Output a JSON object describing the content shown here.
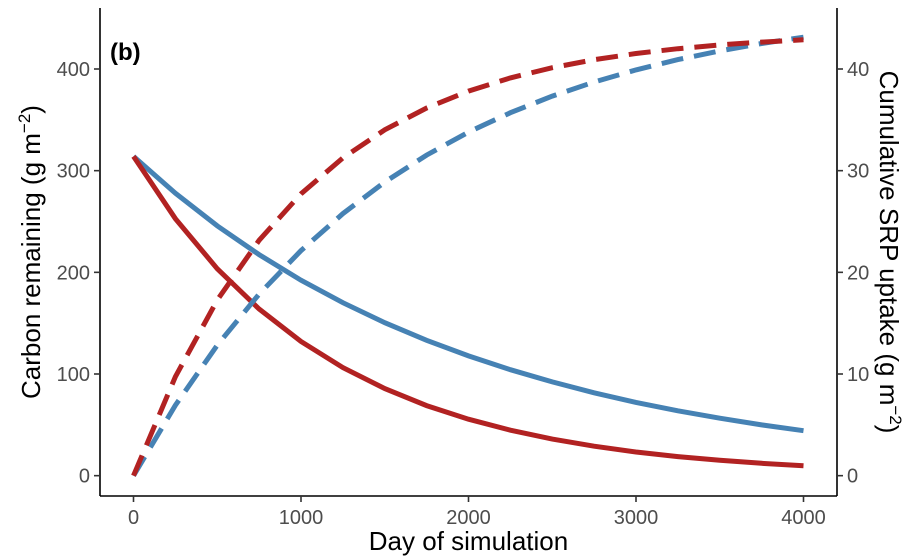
{
  "chart_data": {
    "type": "line",
    "panel_label": "(b)",
    "xlabel": "Day of simulation",
    "ylabel_left": "Carbon remaining (g m",
    "ylabel_left_sup": "−2",
    "ylabel_left_end": ")",
    "ylabel_right": "Cumulative SRP uptake (g m",
    "ylabel_right_sup": "−2",
    "ylabel_right_end": ")",
    "xlim": [
      -200,
      4200
    ],
    "ylim_left": [
      -20,
      460
    ],
    "ylim_right": [
      -2,
      46
    ],
    "xticks": [
      0,
      1000,
      2000,
      3000,
      4000
    ],
    "yticks_left": [
      0,
      100,
      200,
      300,
      400
    ],
    "yticks_right": [
      0,
      10,
      20,
      30,
      40
    ],
    "grid": false,
    "legend": "none",
    "colors": {
      "blue": "#4682b4",
      "red": "#b22222"
    },
    "series": [
      {
        "axis": "left",
        "style": "solid",
        "color": "#4682b4",
        "x": [
          0,
          250,
          500,
          750,
          1000,
          1250,
          1500,
          1750,
          2000,
          2250,
          2500,
          2750,
          3000,
          3250,
          3500,
          3750,
          4000
        ],
        "y": [
          314,
          277.8,
          245.7,
          217.4,
          192.3,
          170.1,
          150.5,
          133.1,
          117.8,
          104.2,
          92.2,
          81.5,
          72.1,
          63.8,
          56.5,
          49.9,
          44.2
        ]
      },
      {
        "axis": "left",
        "style": "solid",
        "color": "#b22222",
        "x": [
          0,
          250,
          500,
          750,
          1000,
          1250,
          1500,
          1750,
          2000,
          2250,
          2500,
          2750,
          3000,
          3250,
          3500,
          3750,
          4000
        ],
        "y": [
          314,
          252.8,
          203.5,
          163.9,
          132,
          106.3,
          85.6,
          68.9,
          55.5,
          44.7,
          36,
          29,
          23.3,
          18.8,
          15.1,
          12.2,
          9.8
        ]
      },
      {
        "axis": "right",
        "style": "dashed",
        "color": "#4682b4",
        "x": [
          0,
          250,
          500,
          750,
          1000,
          1250,
          1500,
          1750,
          2000,
          2250,
          2500,
          2750,
          3000,
          3250,
          3500,
          3750,
          4000
        ],
        "y": [
          0,
          6.93,
          12.84,
          17.86,
          22.14,
          25.78,
          28.89,
          31.53,
          33.79,
          35.7,
          37.33,
          38.72,
          39.91,
          40.92,
          41.78,
          42.51,
          43.13
        ]
      },
      {
        "axis": "right",
        "style": "dashed",
        "color": "#b22222",
        "x": [
          0,
          250,
          500,
          750,
          1000,
          1250,
          1500,
          1750,
          2000,
          2250,
          2500,
          2750,
          3000,
          3250,
          3500,
          3750,
          4000
        ],
        "y": [
          0,
          9.73,
          17.28,
          23.15,
          27.72,
          31.26,
          34.02,
          36.16,
          37.83,
          39.12,
          40.13,
          40.91,
          41.52,
          42.0,
          42.37,
          42.65,
          42.87
        ]
      }
    ]
  }
}
